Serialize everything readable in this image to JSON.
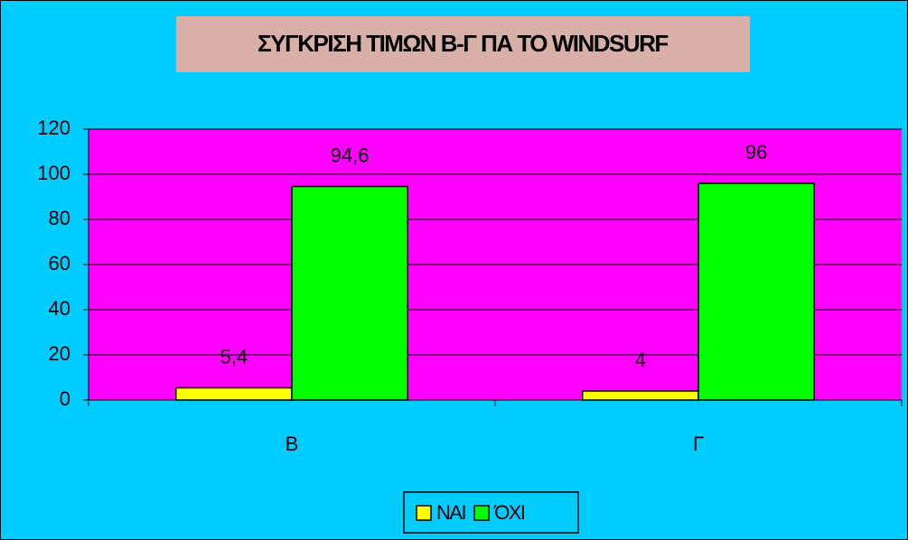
{
  "chart_data": {
    "type": "bar",
    "title": "ΣΥΓΚΡΙΣΗ ΤΙΜΩΝ Β-Γ ΠΑ ΤΟ WINDSURF",
    "categories": [
      "Β",
      "Γ"
    ],
    "series": [
      {
        "name": "ΝΑΙ",
        "color": "#ffff00",
        "values": [
          5.4,
          4
        ],
        "value_labels": [
          "5,4",
          "4"
        ]
      },
      {
        "name": "ΌΧΙ",
        "color": "#00ff00",
        "values": [
          94.6,
          96
        ],
        "value_labels": [
          "94,6",
          "96"
        ]
      }
    ],
    "ylim": [
      0,
      120
    ],
    "yticks": [
      0,
      20,
      40,
      60,
      80,
      100,
      120
    ],
    "grid": true,
    "legend": "bottom"
  }
}
